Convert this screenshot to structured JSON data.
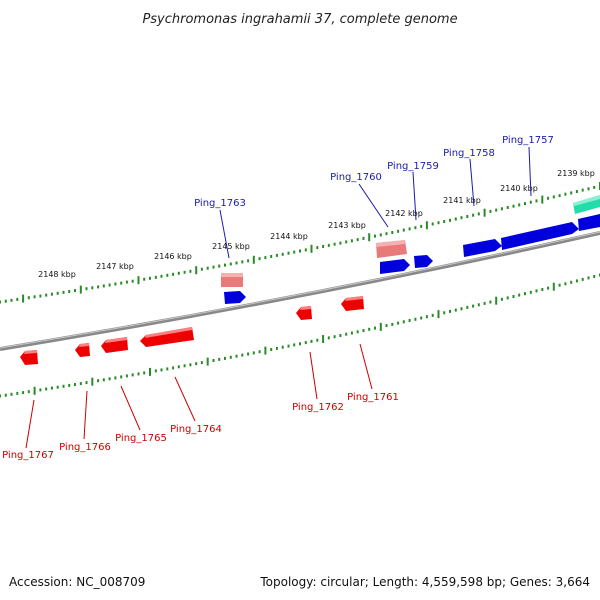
{
  "title": "Psychromonas ingrahamii 37, complete genome",
  "footer": {
    "accession": "Accession: NC_008709",
    "topology": "Topology: circular; Length: 4,559,598 bp; Genes: 3,664"
  },
  "colors": {
    "forward_gene": "#0000dd",
    "reverse_gene": "#ee0000",
    "forward_label": "#1a1aaa",
    "reverse_label": "#cc0000",
    "pseudo_gene": "#e87a7a",
    "rna_gene": "#22ddaa",
    "backbone": "#888888",
    "ticks": "#2a8a2a"
  },
  "kbp_labels": [
    "2139 kbp",
    "2140 kbp",
    "2141 kbp",
    "2142 kbp",
    "2143 kbp",
    "2144 kbp",
    "2145 kbp",
    "2146 kbp",
    "2147 kbp",
    "2148 kbp"
  ],
  "genes_forward_labeled": [
    "Ping_1757",
    "Ping_1758",
    "Ping_1759",
    "Ping_1760",
    "Ping_1763"
  ],
  "genes_reverse_labeled": [
    "Ping_1761",
    "Ping_1762",
    "Ping_1764",
    "Ping_1765",
    "Ping_1766",
    "Ping_1767"
  ]
}
